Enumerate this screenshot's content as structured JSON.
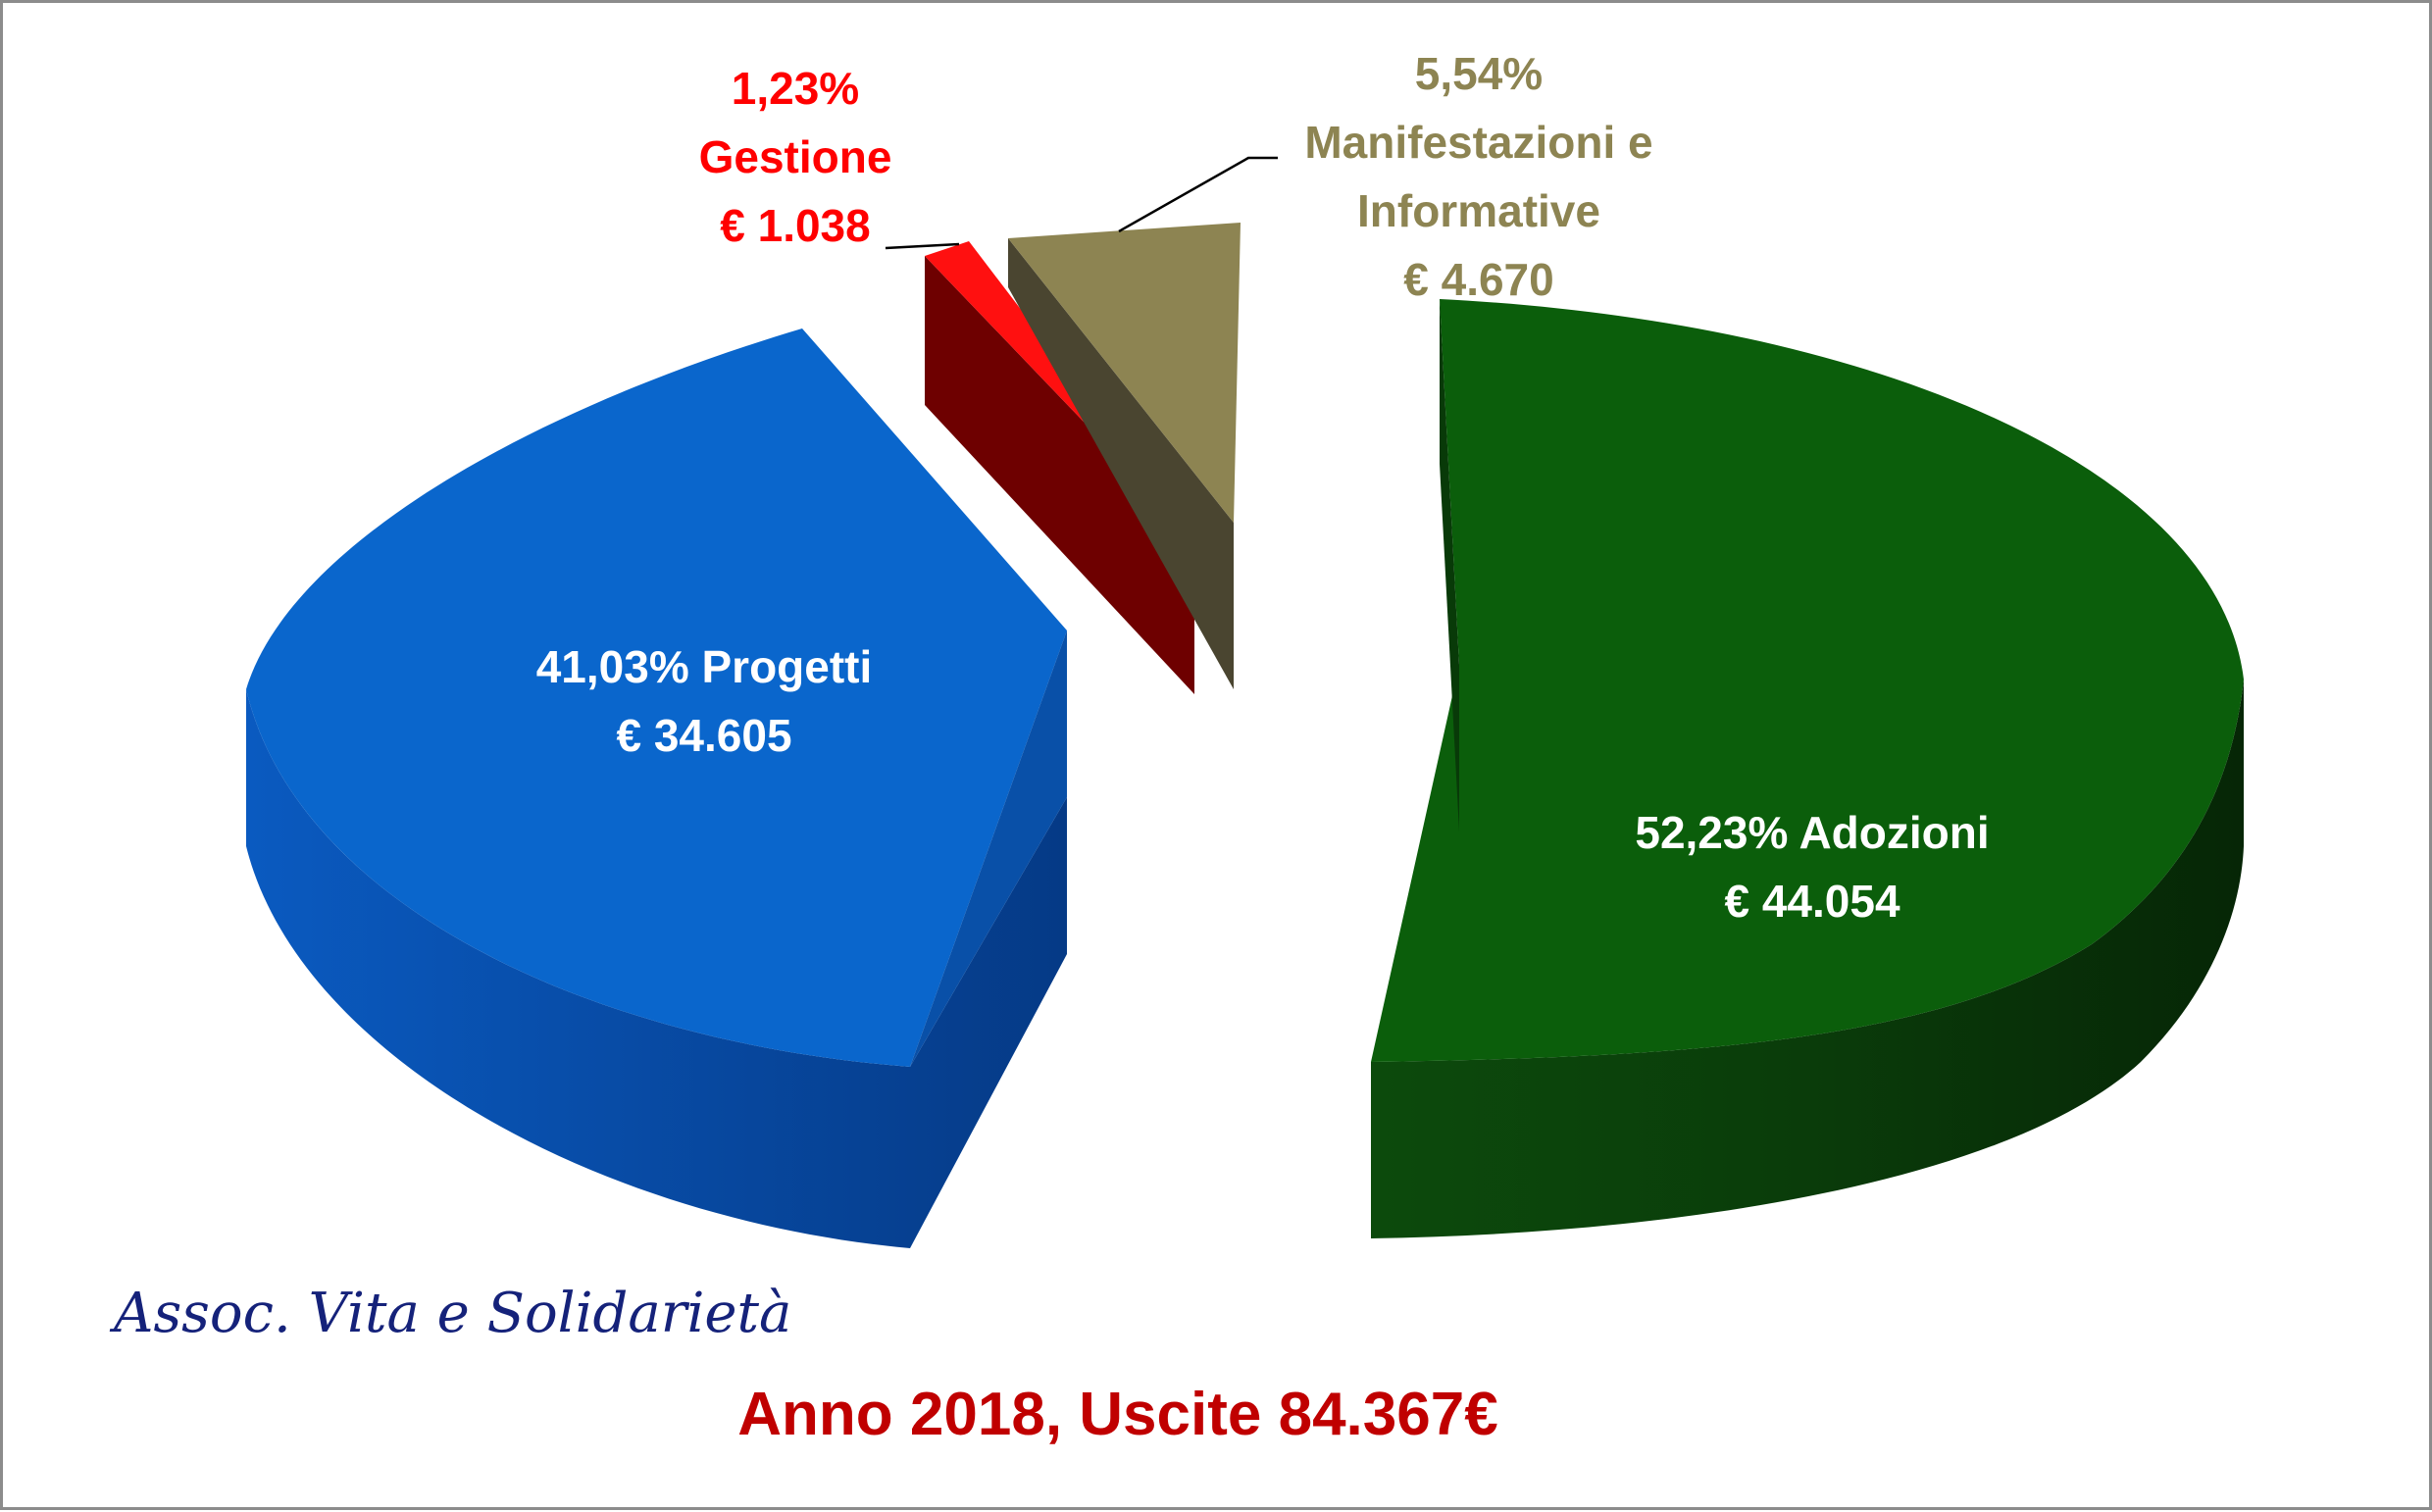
{
  "chart_data": {
    "type": "pie",
    "style": "3d-exploded",
    "title": "Anno 2018, Uscite 84.367€",
    "total": 84367,
    "currency": "€",
    "slices": [
      {
        "label": "Adozioni",
        "value": 44054,
        "percent": 52.23,
        "percent_label": "52,23%",
        "value_label": "€ 44.054",
        "color": "#0b5e0b",
        "label_color": "#ffffff"
      },
      {
        "label": "Progetti",
        "value": 34605,
        "percent": 41.03,
        "percent_label": "41,03%",
        "value_label": "€ 34.605",
        "color": "#0a66cc",
        "label_color": "#ffffff"
      },
      {
        "label": "Gestione",
        "value": 1038,
        "percent": 1.23,
        "percent_label": "1,23%",
        "value_label": "€ 1.038",
        "color": "#ff1010",
        "label_color": "#ff0000"
      },
      {
        "label": "Manifestazioni e Informative",
        "label_lines": [
          "Manifestazioni e",
          "Informative"
        ],
        "value": 4670,
        "percent": 5.54,
        "percent_label": "5,54%",
        "value_label": "€ 4.670",
        "color": "#8d8452",
        "label_color": "#8d8452"
      }
    ]
  },
  "branding": {
    "organization": "Assoc. Vita e Solidarietà",
    "color": "#15227a"
  },
  "caption_color": "#c00000"
}
